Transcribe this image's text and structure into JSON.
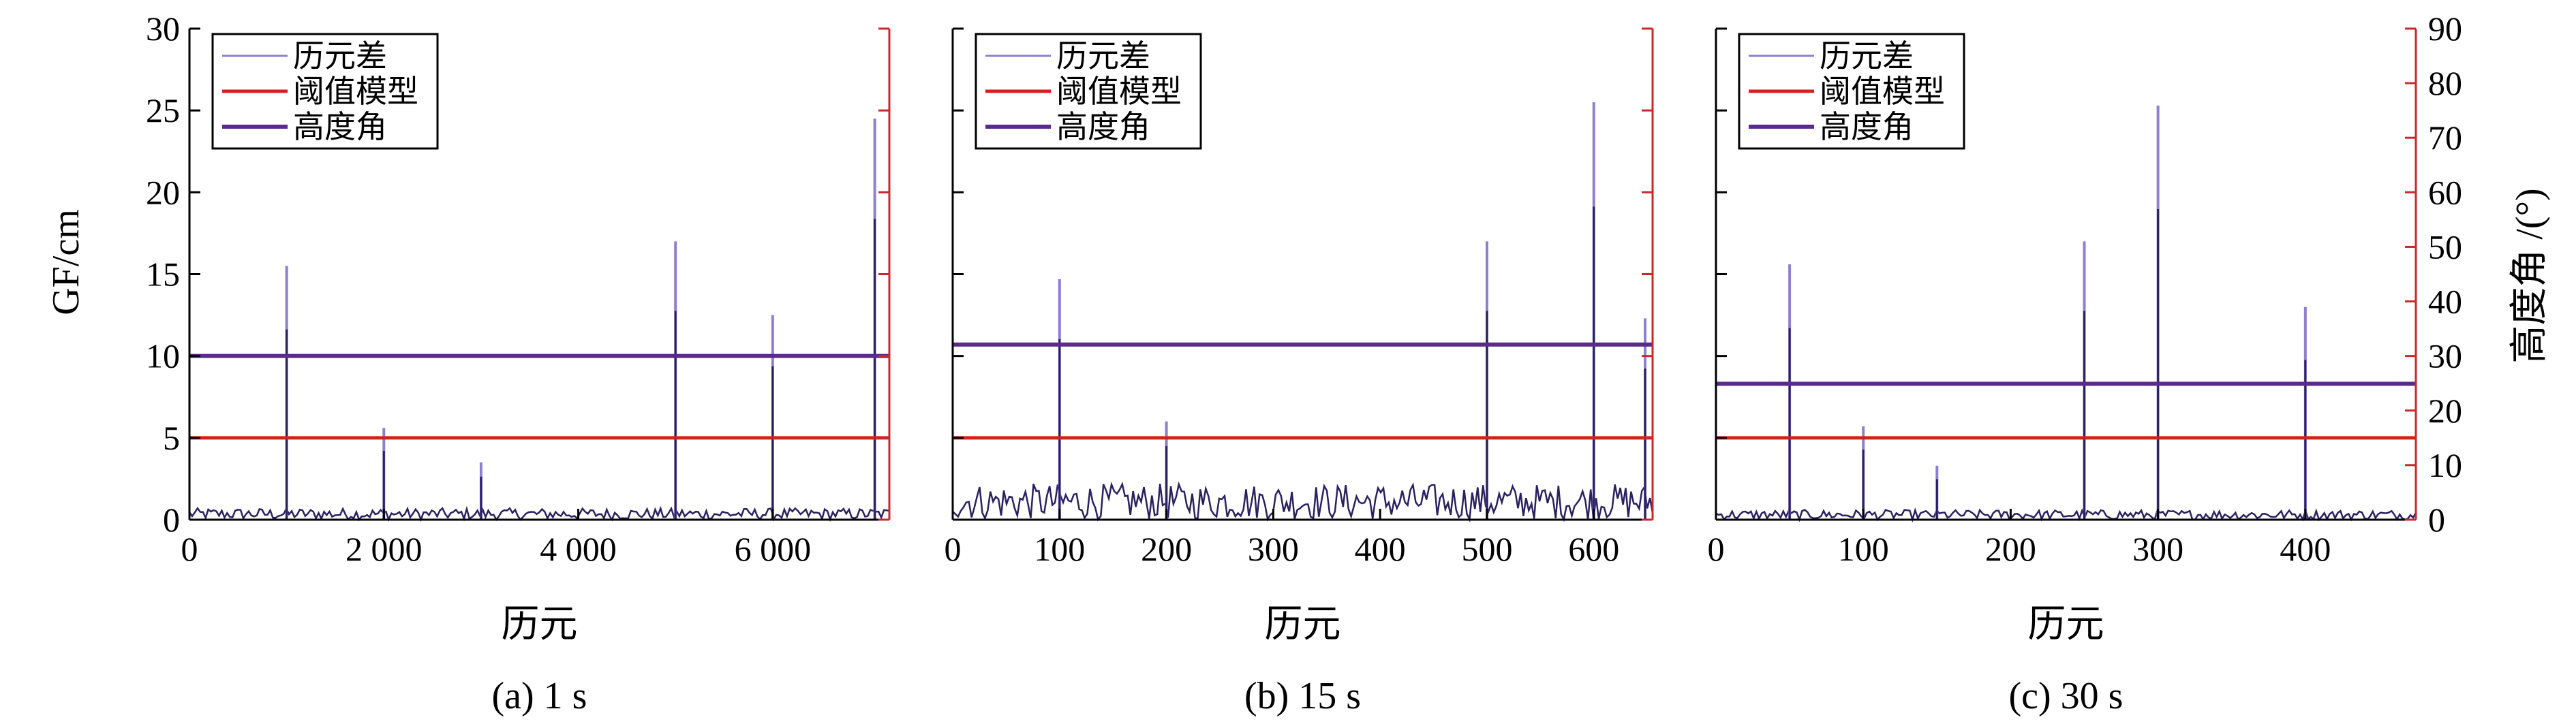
{
  "colors": {
    "diff_spike": "#8f7fd0",
    "diff_base": "#2b2060",
    "threshold": "#d42020",
    "elevation": "#5b2a8c",
    "right_axis": "#c8282c",
    "axis": "#000000"
  },
  "left_axis_label": "GF/cm",
  "right_axis_label": "高度角 /(°)",
  "chart_data": [
    {
      "type": "line",
      "caption": "(a) 1 s",
      "xlabel": "历元",
      "ylabel": "GF/cm",
      "y2label": "",
      "xlim": [
        0,
        7200
      ],
      "ylim": [
        0,
        30
      ],
      "xticks": [
        0,
        2000,
        4000,
        6000
      ],
      "xtick_labels": [
        "0",
        "2 000",
        "4 000",
        "6 000"
      ],
      "yticks": [
        0,
        5,
        10,
        15,
        20,
        25,
        30
      ],
      "ytick_labels": [
        "0",
        "5",
        "10",
        "15",
        "20",
        "25",
        "30"
      ],
      "legend_position": "top-left",
      "legend": [
        "历元差",
        "阈值模型",
        "高度角"
      ],
      "threshold": 5,
      "elevation_level": 10,
      "noise_level": 0.7,
      "spikes": [
        {
          "x": 1000,
          "y": 15.5
        },
        {
          "x": 2000,
          "y": 5.6
        },
        {
          "x": 3000,
          "y": 3.5
        },
        {
          "x": 5000,
          "y": 17
        },
        {
          "x": 6000,
          "y": 12.5
        },
        {
          "x": 7050,
          "y": 24.5
        }
      ]
    },
    {
      "type": "line",
      "caption": "(b) 15 s",
      "xlabel": "历元",
      "ylabel": "",
      "y2label": "",
      "xlim": [
        0,
        655
      ],
      "ylim": [
        0,
        30
      ],
      "xticks": [
        0,
        100,
        200,
        300,
        400,
        500,
        600
      ],
      "xtick_labels": [
        "0",
        "100",
        "200",
        "300",
        "400",
        "500",
        "600"
      ],
      "yticks": [
        0,
        5,
        10,
        15,
        20,
        25,
        30
      ],
      "ytick_labels": [],
      "legend_position": "top-left",
      "legend": [
        "历元差",
        "阈值模型",
        "高度角"
      ],
      "threshold": 5,
      "elevation_level": 10.7,
      "noise_level": 2.2,
      "spikes": [
        {
          "x": 100,
          "y": 14.7
        },
        {
          "x": 200,
          "y": 6
        },
        {
          "x": 500,
          "y": 17
        },
        {
          "x": 600,
          "y": 25.5
        },
        {
          "x": 648,
          "y": 12.3
        }
      ]
    },
    {
      "type": "line",
      "caption": "(c) 30 s",
      "xlabel": "历元",
      "ylabel": "",
      "y2label": "高度角 /(°)",
      "xlim": [
        0,
        475
      ],
      "ylim": [
        0,
        30
      ],
      "y2lim": [
        0,
        90
      ],
      "xticks": [
        0,
        100,
        200,
        300,
        400
      ],
      "xtick_labels": [
        "0",
        "100",
        "200",
        "300",
        "400"
      ],
      "yticks": [
        0,
        5,
        10,
        15,
        20,
        25,
        30
      ],
      "ytick_labels": [],
      "y2ticks": [
        0,
        10,
        20,
        30,
        40,
        50,
        60,
        70,
        80,
        90
      ],
      "y2tick_labels": [
        "0",
        "10",
        "20",
        "30",
        "40",
        "50",
        "60",
        "70",
        "80",
        "90"
      ],
      "legend_position": "top-left",
      "legend": [
        "历元差",
        "阈值模型",
        "高度角"
      ],
      "threshold": 5,
      "elevation_level": 8.3,
      "noise_level": 0.6,
      "spikes": [
        {
          "x": 50,
          "y": 15.6
        },
        {
          "x": 100,
          "y": 5.7
        },
        {
          "x": 150,
          "y": 3.3
        },
        {
          "x": 250,
          "y": 17
        },
        {
          "x": 300,
          "y": 25.3
        },
        {
          "x": 400,
          "y": 13
        }
      ]
    }
  ]
}
